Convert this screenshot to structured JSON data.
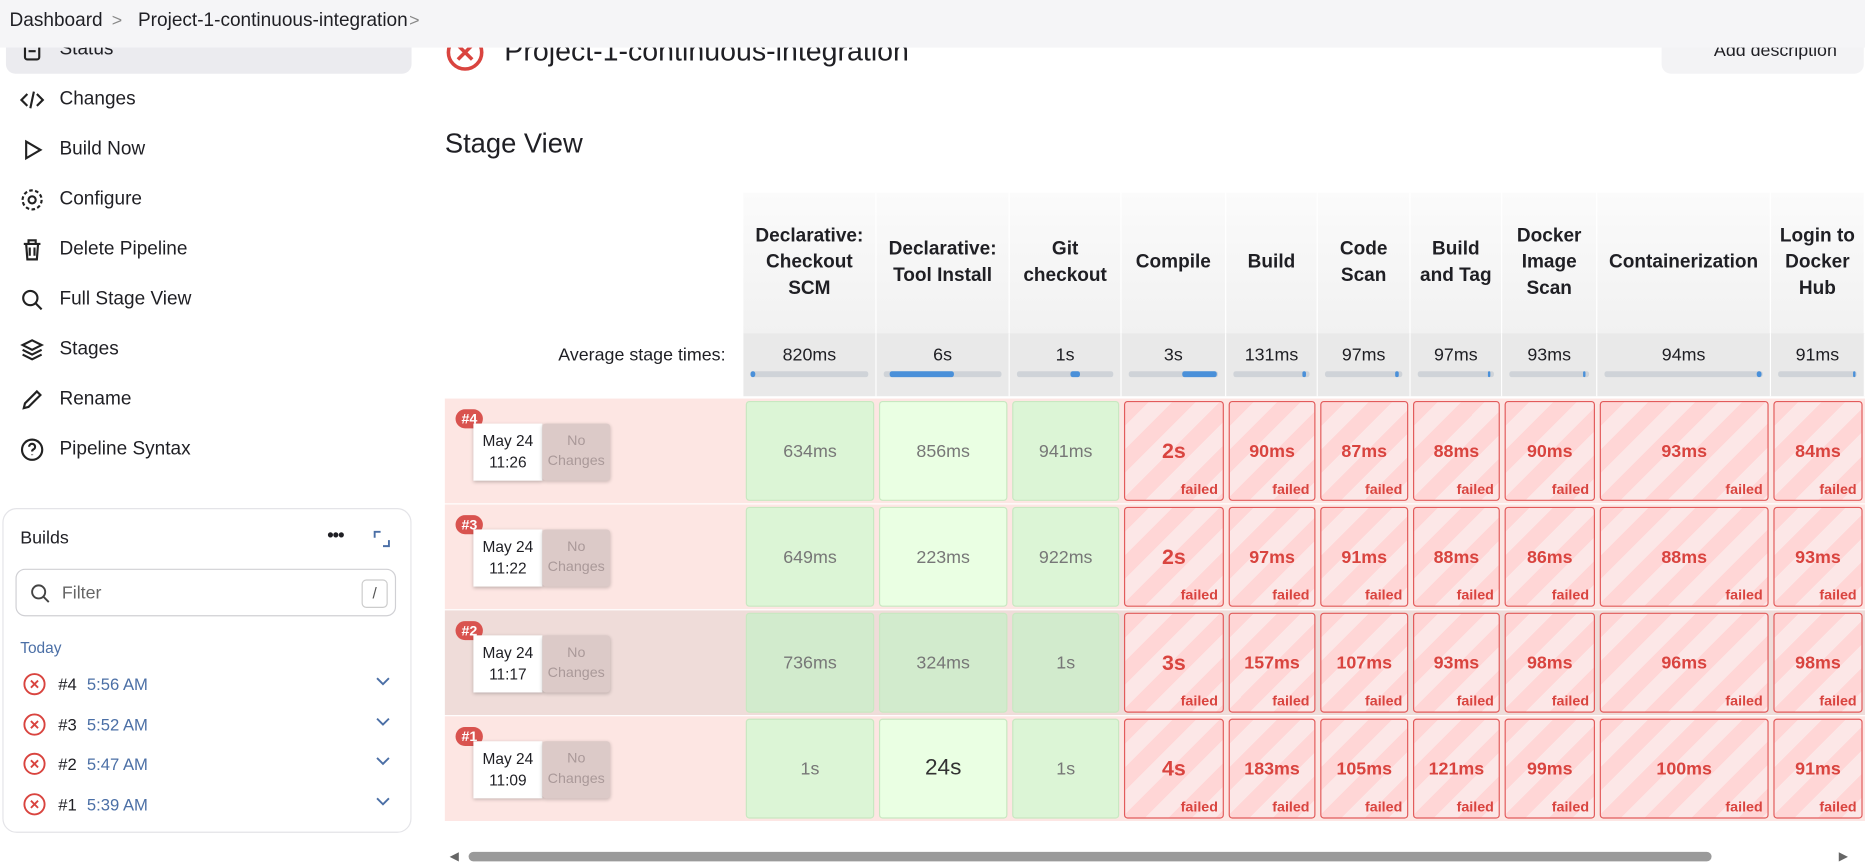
{
  "breadcrumb": [
    "Dashboard",
    "Project-1-continuous-integration"
  ],
  "header": {
    "title": "Project-1-continuous-integration",
    "add_description": "Add description"
  },
  "menu": [
    "Status",
    "Changes",
    "Build Now",
    "Configure",
    "Delete Pipeline",
    "Full Stage View",
    "Stages",
    "Rename",
    "Pipeline Syntax"
  ],
  "builds": {
    "title": "Builds",
    "filter_placeholder": "Filter",
    "filter_shortcut": "/",
    "group": "Today",
    "items": [
      {
        "number": "#4",
        "time": "5:56 AM"
      },
      {
        "number": "#3",
        "time": "5:52 AM"
      },
      {
        "number": "#2",
        "time": "5:47 AM"
      },
      {
        "number": "#1",
        "time": "5:39 AM"
      }
    ]
  },
  "stage_view": {
    "title": "Stage View",
    "average_label": "Average stage times:",
    "stages": [
      "Declarative: Checkout SCM",
      "Declarative: Tool Install",
      "Git checkout",
      "Compile",
      "Build",
      "Code Scan",
      "Build and Tag",
      "Docker Image Scan",
      "Containerization",
      "Login to Docker Hub"
    ],
    "averages": [
      "820ms",
      "6s",
      "1s",
      "3s",
      "131ms",
      "97ms",
      "97ms",
      "93ms",
      "94ms",
      "91ms"
    ],
    "runs": [
      {
        "badge": "#4",
        "date": "May 24",
        "time": "11:26",
        "changes": "No Changes",
        "cells": [
          {
            "time": "634ms"
          },
          {
            "time": "856ms"
          },
          {
            "time": "941ms"
          },
          {
            "time": "2s",
            "status": "failed"
          },
          {
            "time": "90ms",
            "status": "failed"
          },
          {
            "time": "87ms",
            "status": "failed"
          },
          {
            "time": "88ms",
            "status": "failed"
          },
          {
            "time": "90ms",
            "status": "failed"
          },
          {
            "time": "93ms",
            "status": "failed"
          },
          {
            "time": "84ms",
            "status": "failed"
          }
        ]
      },
      {
        "badge": "#3",
        "date": "May 24",
        "time": "11:22",
        "changes": "No Changes",
        "cells": [
          {
            "time": "649ms"
          },
          {
            "time": "223ms"
          },
          {
            "time": "922ms"
          },
          {
            "time": "2s",
            "status": "failed"
          },
          {
            "time": "97ms",
            "status": "failed"
          },
          {
            "time": "91ms",
            "status": "failed"
          },
          {
            "time": "88ms",
            "status": "failed"
          },
          {
            "time": "86ms",
            "status": "failed"
          },
          {
            "time": "88ms",
            "status": "failed"
          },
          {
            "time": "93ms",
            "status": "failed"
          }
        ]
      },
      {
        "badge": "#2",
        "date": "May 24",
        "time": "11:17",
        "changes": "No Changes",
        "cells": [
          {
            "time": "736ms"
          },
          {
            "time": "324ms"
          },
          {
            "time": "1s"
          },
          {
            "time": "3s",
            "status": "failed"
          },
          {
            "time": "157ms",
            "status": "failed"
          },
          {
            "time": "107ms",
            "status": "failed"
          },
          {
            "time": "93ms",
            "status": "failed"
          },
          {
            "time": "98ms",
            "status": "failed"
          },
          {
            "time": "96ms",
            "status": "failed"
          },
          {
            "time": "98ms",
            "status": "failed"
          }
        ]
      },
      {
        "badge": "#1",
        "date": "May 24",
        "time": "11:09",
        "changes": "No Changes",
        "cells": [
          {
            "time": "1s"
          },
          {
            "time": "24s"
          },
          {
            "time": "1s"
          },
          {
            "time": "4s",
            "status": "failed"
          },
          {
            "time": "183ms",
            "status": "failed"
          },
          {
            "time": "105ms",
            "status": "failed"
          },
          {
            "time": "121ms",
            "status": "failed"
          },
          {
            "time": "99ms",
            "status": "failed"
          },
          {
            "time": "100ms",
            "status": "failed"
          },
          {
            "time": "91ms",
            "status": "failed"
          }
        ]
      }
    ]
  }
}
